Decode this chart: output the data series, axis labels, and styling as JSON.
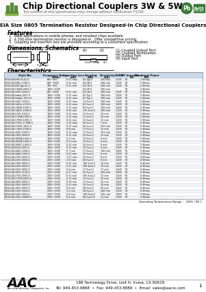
{
  "title": "Chip Directional Couplers 3W & 5W",
  "subtitle": "The content of this specification may change without notification TS100",
  "eia_title": "EIA Size 0805 Termination Resistor Designed-In Chip Directional Couplers",
  "features_title": "Features",
  "features": [
    "1.  Ideal applications in mobile phones, and smallest chips available.",
    "2.  A 200 ohm termination resistor is designed-in.  Offer competitive pricing.",
    "3.  Coupling and insertion loss are provided according to a customers specification."
  ],
  "dimensions_title": "Dimensions, Schematics",
  "characteristics_title": "Characteristics",
  "footer_line1": "188 Technology Drive, Unit H, Irvine, CA 92618",
  "footer_line2": "Tel: 949-453-9888  •  Fax: 949-453-8889  •  Email: sales@aacix.com",
  "table_headers": [
    "Style No.",
    "Frequency Range\n(MHz)",
    "Insertion Loss\n(dB)",
    "Coupling\n(dB)",
    "Directivity\n(dB)",
    "VSWR",
    "RF Impedance\n(Ω)",
    "Max Input Power\n(W)"
  ],
  "table_data": [
    [
      "DCS214K-698-40-41-G",
      "800~960",
      "0.31 max",
      "43 Typ 2",
      "100 min",
      "1.200",
      "50",
      "2 Wmax"
    ],
    [
      "DCS214K-698C-1000-G",
      "800~1000",
      "0.31 min",
      "43.0B Z",
      "100 min",
      "1.200",
      "50",
      "2 Wmax"
    ],
    [
      "DCS214K-698-Typ-41-G",
      "700~960",
      "0.31 min",
      "43.0B Z",
      "100 min",
      "1.200",
      "50",
      "2 Wmax"
    ],
    [
      "DCS214K-2100B-0050-G",
      "1400~2000",
      "",
      "43.0B Z",
      "100 min",
      "",
      "50",
      "2 Wmax"
    ],
    [
      "DCS214K-1000-0050-G",
      "800~1000",
      "0.31 min",
      "43.0B Z",
      "100 min",
      "1.200",
      "50",
      "2 Wmax"
    ],
    [
      "DCS214K-Indep-1000-G",
      "1400~2000",
      "0.31 max",
      "43 Typ 2",
      "100 min",
      "1.200",
      "50",
      "2 Wmax"
    ],
    [
      "DCS214K-Indep2-1000-G",
      "1400~2000",
      "0.31 max",
      "43 Typ 2",
      "100 min",
      "1.200",
      "50",
      "2 Wmax"
    ],
    [
      "DCS214K-1400-1000-G",
      "1400~2000",
      "0.31 max",
      "11 Eval 2",
      "100 min",
      "1.200",
      "50",
      "2 Wmax"
    ],
    [
      "DCS214K-1400x-1000-G",
      "1400~1800",
      "0.31 max",
      "65 Eval 2",
      "100 min",
      "1.400",
      "50",
      "2 Wmax"
    ],
    [
      "DCS214K-1400B-1000-G",
      "1400~1800",
      "0.31 max",
      "83 Eval 2",
      "100 min",
      "1.400",
      "50",
      "2 Wmax"
    ],
    [
      "DCS214K-1400C-1000-G",
      "1400~1800",
      "0.35 min",
      "175 Eval 2",
      "100 min",
      "1.100",
      "50",
      "2 Wmax"
    ],
    [
      "DCS214K-1700-1000-G",
      "1800~1900",
      "0.31 max",
      "15 Eval 2",
      "10 min",
      "1.200",
      "50",
      "2 Wmax"
    ],
    [
      "DCS214K-1700A-1000-G",
      "1800~2000",
      "0.31 max",
      "11 Eval 2",
      "10 min",
      "1.200",
      "50",
      "2 Wmax"
    ],
    [
      "DCS214K-1700B-1000-G",
      "1800~1900",
      "0.51 min",
      "15 Eval 2",
      "12 min",
      "1.200",
      "50",
      "2 Wmax"
    ],
    [
      "DCS214K-1700C-1700B-G",
      "1800~1900",
      "1.51 max",
      "50 Eval 2",
      "7 min",
      "1.300",
      "50",
      "2 Wmax"
    ],
    [
      "DCS214K-1700D-1000-G",
      "1800~1900",
      "0.15 max",
      "50 Eval 2",
      "103 min",
      "1.300",
      "50",
      "2 Wmax"
    ],
    [
      "DCS214K-1700E-1000-G",
      "1800~1900",
      "0.8 min",
      "17 Eval 2",
      "12 min",
      "1.300",
      "50",
      "2 Wmax"
    ],
    [
      "DCS214K-1800-1000-G",
      "1800~2100",
      "0.15 max",
      "17 Eval 2",
      "103 min",
      "1.300",
      "50",
      "2 Wmax"
    ],
    [
      "DCS214K-1900-1800-G",
      "1800~2000",
      "0.31 min",
      "10 Eval 2",
      "12 min",
      "1.200",
      "50",
      "2 Wmax"
    ],
    [
      "DCS214K-1800A-1000-G",
      "1800~2000",
      "0.3 min",
      "15 Eval 2",
      "9 min",
      "1.200",
      "50",
      "2 Wmax"
    ],
    [
      "DCS214K-1800B-1000-G",
      "1800~2000",
      "0.31 min",
      "15 Eval 2",
      "9 min",
      "1.200",
      "50",
      "2 Wmax"
    ],
    [
      "DCS214K-1800C-1000-G",
      "1800~2000",
      "0.31 min",
      "15 Eval 2",
      "9 min",
      "1.200",
      "50",
      "2 Wmax"
    ],
    [
      "DCS214K4446-1000-G",
      "1800~2000",
      "0.31 min",
      "15 Eval 2",
      "9 min",
      "1.200",
      "50",
      "2 Wmax"
    ],
    [
      "DCS214K-4480-1000-G",
      "1800~2000",
      "0.7 min",
      "27 Eval 2",
      "100 min",
      "1.400",
      "50",
      "2 Wmax"
    ],
    [
      "DCS214K-44A0-1000-G",
      "1800~2000",
      "0.31 min",
      "15 Eval 2",
      "9 min",
      "1.200",
      "50",
      "2 Wmax"
    ],
    [
      "DCS214K-2100-0050-G",
      "2000~2000",
      "1.51 max",
      "52 Eval 2",
      "8 min",
      "1.200",
      "50",
      "4 Wmax"
    ],
    [
      "DCS214K-2200-0050-G",
      "2000~2000",
      "1.6 max",
      "40 Eval 2",
      "8 min",
      "1.200",
      "50",
      "4 Wmax"
    ],
    [
      "DCS214K-2300-0050-G",
      "2000~2000",
      "0.31 min",
      "100 Eval 2",
      "10 min",
      "1.200",
      "50",
      "4 Wmax"
    ],
    [
      "DCS214K-2400-0050-G",
      "2000~2000",
      "0.31 min",
      "100 Eval 2",
      "10 min",
      "1.400",
      "50",
      "4 Wmax"
    ],
    [
      "DCS214K-2500-0050-G",
      "2000~2000",
      "0.4 min",
      "17 Eval 2",
      "17 min",
      "1.200",
      "50",
      "4 Wmax"
    ],
    [
      "DCS214K-2600-2100-G",
      "2000~2500",
      "0.27 min",
      "15 Eval 2",
      "140 min",
      "1.400",
      "50",
      "2 Wmax"
    ],
    [
      "DCS214K-2700-0050-G",
      "2000~2500",
      "0.31 min",
      "100 Eval 2",
      "15 min",
      "1.300",
      "50",
      "4 Wmax"
    ],
    [
      "DCS214K-2700B-0050-G",
      "2000~2500",
      "0.31 min",
      "15 Eval 2",
      "15 min",
      "1.200",
      "50",
      "4 Wmax"
    ],
    [
      "DCS214K-2800-0050-G",
      "2000~2500",
      "0.39 min",
      "11 Eval 2",
      "15 min",
      "1.400",
      "50",
      "4 Wmax"
    ],
    [
      "DCS214K-2900-0050-G",
      "2000~2500",
      "0.31 min",
      "15 Eval 2",
      "16 min",
      "1.200",
      "50",
      "4 Wmax"
    ],
    [
      "DCS214K-3000-0050-G",
      "2000~2500",
      "0.8 min",
      "38 Eval 2",
      "91 min",
      "1.400",
      "50",
      "4 Wmax"
    ],
    [
      "DCS214K-3100-0050-G",
      "2000~2500",
      "1.2 min",
      "38 Eval 2",
      "100 min",
      "1.200",
      "50",
      "4 Wmax"
    ],
    [
      "DCS214K-3200-0050-G",
      "2000~2500",
      "0.4 min",
      "100 Eval 2",
      "165 min",
      "1.400",
      "50",
      "4 Wmax"
    ],
    [
      "DCS214K-3300-34000-G",
      "2000~2500",
      "0.4 min",
      "94 Eval 27",
      "11 min",
      "1.300",
      "50",
      "2 Wmax"
    ]
  ],
  "highlight_rows": [
    3,
    4
  ],
  "operating_temp": "Operating Temperature Range :  -1001 / 85 C",
  "bg_color": "#ffffff"
}
